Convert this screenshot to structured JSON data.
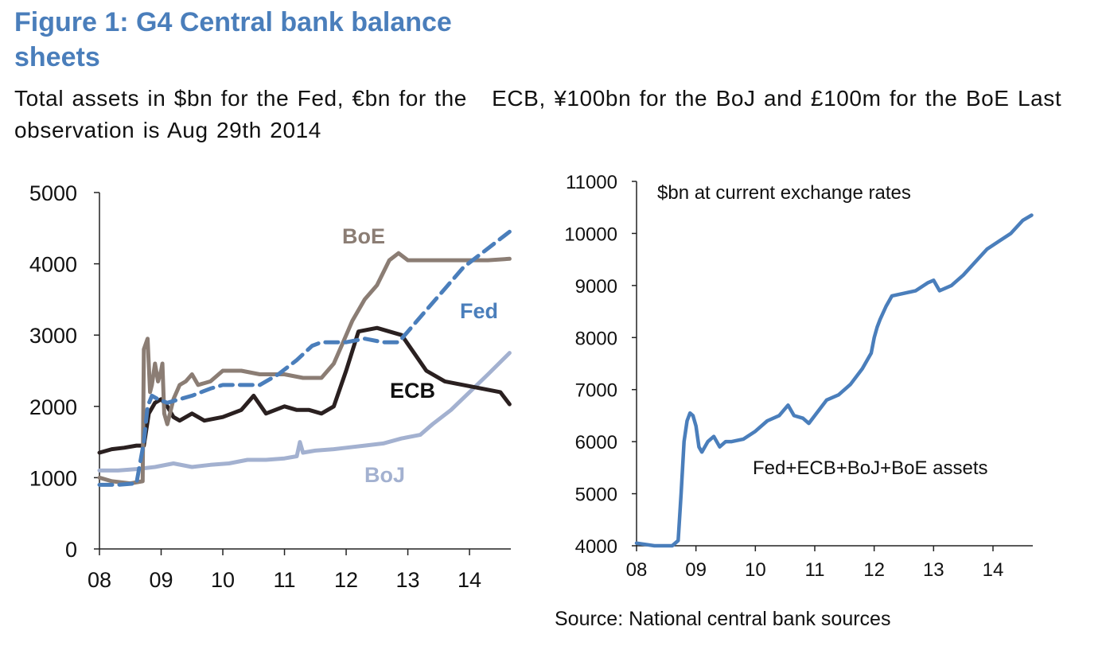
{
  "title": "Figure 1: G4 Central bank balance sheets",
  "subtitle": "Total assets in $bn for the Fed, €bn for the   ECB, ¥100bn for the BoJ and £100m for the BoE Last observation is Aug 29th 2014",
  "source": "Source: National central bank sources",
  "chart_data": [
    {
      "type": "line",
      "xlim": [
        2008,
        2014.67
      ],
      "ylim": [
        0,
        5000
      ],
      "x_ticks": [
        "08",
        "09",
        "10",
        "11",
        "12",
        "13",
        "14"
      ],
      "y_ticks": [
        "0",
        "1000",
        "2000",
        "3000",
        "4000",
        "5000"
      ],
      "colors": {
        "boe": "#8b7d74",
        "fed": "#4a7ebb",
        "ecb": "#2a2020",
        "boj": "#a3b1d0"
      },
      "series": [
        {
          "name": "BoE",
          "key": "boe",
          "style": "solid",
          "x": [
            2008.0,
            2008.2,
            2008.5,
            2008.7,
            2008.72,
            2008.78,
            2008.82,
            2008.85,
            2008.9,
            2008.95,
            2009.0,
            2009.02,
            2009.05,
            2009.1,
            2009.2,
            2009.3,
            2009.4,
            2009.5,
            2009.6,
            2009.8,
            2010.0,
            2010.3,
            2010.6,
            2011.0,
            2011.3,
            2011.6,
            2011.8,
            2011.95,
            2012.1,
            2012.3,
            2012.5,
            2012.7,
            2012.85,
            2013.0,
            2013.3,
            2013.6,
            2014.0,
            2014.3,
            2014.65
          ],
          "values": [
            1000,
            950,
            920,
            950,
            2800,
            2950,
            2200,
            2300,
            2600,
            2350,
            2500,
            2600,
            1900,
            1750,
            2100,
            2300,
            2350,
            2450,
            2300,
            2350,
            2500,
            2500,
            2450,
            2450,
            2400,
            2400,
            2600,
            2900,
            3200,
            3500,
            3700,
            4050,
            4150,
            4050,
            4050,
            4050,
            4050,
            4050,
            4070
          ]
        },
        {
          "name": "Fed",
          "key": "fed",
          "style": "dashed",
          "x": [
            2008.0,
            2008.3,
            2008.6,
            2008.72,
            2008.78,
            2008.85,
            2008.95,
            2009.1,
            2009.3,
            2009.5,
            2009.8,
            2010.0,
            2010.3,
            2010.6,
            2010.9,
            2011.2,
            2011.45,
            2011.6,
            2011.8,
            2012.0,
            2012.3,
            2012.6,
            2012.85,
            2013.0,
            2013.3,
            2013.6,
            2013.9,
            2014.2,
            2014.5,
            2014.65
          ],
          "values": [
            900,
            900,
            920,
            1500,
            2000,
            2150,
            2100,
            2050,
            2100,
            2150,
            2250,
            2300,
            2300,
            2300,
            2450,
            2650,
            2850,
            2900,
            2900,
            2900,
            2950,
            2900,
            2900,
            3050,
            3350,
            3650,
            3950,
            4150,
            4350,
            4450
          ]
        },
        {
          "name": "ECB",
          "key": "ecb",
          "style": "solid",
          "x": [
            2008.0,
            2008.2,
            2008.4,
            2008.6,
            2008.72,
            2008.8,
            2008.9,
            2009.0,
            2009.1,
            2009.2,
            2009.3,
            2009.5,
            2009.7,
            2010.0,
            2010.3,
            2010.5,
            2010.7,
            2011.0,
            2011.2,
            2011.4,
            2011.6,
            2011.8,
            2012.0,
            2012.2,
            2012.5,
            2012.7,
            2012.9,
            2013.1,
            2013.3,
            2013.6,
            2013.9,
            2014.2,
            2014.5,
            2014.65
          ],
          "values": [
            1350,
            1400,
            1420,
            1450,
            1450,
            1900,
            2050,
            2100,
            2000,
            1850,
            1800,
            1900,
            1800,
            1850,
            1950,
            2150,
            1900,
            2000,
            1950,
            1950,
            1900,
            2000,
            2500,
            3050,
            3100,
            3050,
            3000,
            2750,
            2500,
            2350,
            2300,
            2250,
            2200,
            2030
          ]
        },
        {
          "name": "BoJ",
          "key": "boj",
          "style": "solid",
          "x": [
            2008.0,
            2008.3,
            2008.6,
            2008.9,
            2009.2,
            2009.5,
            2009.8,
            2010.1,
            2010.4,
            2010.7,
            2011.0,
            2011.2,
            2011.25,
            2011.3,
            2011.5,
            2011.8,
            2012.0,
            2012.3,
            2012.6,
            2012.9,
            2013.2,
            2013.4,
            2013.7,
            2014.0,
            2014.3,
            2014.65
          ],
          "values": [
            1100,
            1100,
            1120,
            1150,
            1200,
            1150,
            1180,
            1200,
            1250,
            1250,
            1270,
            1300,
            1500,
            1350,
            1380,
            1400,
            1420,
            1450,
            1480,
            1550,
            1600,
            1750,
            1950,
            2200,
            2450,
            2750
          ]
        }
      ]
    },
    {
      "type": "line",
      "xlim": [
        2008,
        2014.67
      ],
      "ylim": [
        4000,
        11000
      ],
      "x_ticks": [
        "08",
        "09",
        "10",
        "11",
        "12",
        "13",
        "14"
      ],
      "y_ticks": [
        "4000",
        "5000",
        "6000",
        "7000",
        "8000",
        "9000",
        "10000",
        "11000"
      ],
      "annotation_top": "$bn at current exchange rates",
      "annotation_series": "Fed+ECB+BoJ+BoE assets",
      "colors": {
        "total": "#4a7ebb"
      },
      "series": [
        {
          "key": "total",
          "x": [
            2008.0,
            2008.3,
            2008.6,
            2008.7,
            2008.75,
            2008.8,
            2008.85,
            2008.9,
            2008.95,
            2009.0,
            2009.05,
            2009.1,
            2009.2,
            2009.3,
            2009.4,
            2009.5,
            2009.6,
            2009.8,
            2010.0,
            2010.2,
            2010.4,
            2010.55,
            2010.65,
            2010.8,
            2010.9,
            2011.0,
            2011.2,
            2011.4,
            2011.6,
            2011.8,
            2011.95,
            2012.0,
            2012.05,
            2012.1,
            2012.2,
            2012.3,
            2012.5,
            2012.7,
            2012.9,
            2013.0,
            2013.1,
            2013.3,
            2013.5,
            2013.7,
            2013.9,
            2014.1,
            2014.3,
            2014.5,
            2014.65
          ],
          "values": [
            4050,
            4000,
            4000,
            4100,
            5000,
            6000,
            6400,
            6550,
            6500,
            6300,
            5900,
            5800,
            6000,
            6100,
            5900,
            6000,
            6000,
            6050,
            6200,
            6400,
            6500,
            6700,
            6500,
            6450,
            6350,
            6500,
            6800,
            6900,
            7100,
            7400,
            7700,
            8000,
            8200,
            8350,
            8600,
            8800,
            8850,
            8900,
            9050,
            9100,
            8900,
            9000,
            9200,
            9450,
            9700,
            9850,
            10000,
            10250,
            10350
          ]
        }
      ]
    }
  ]
}
